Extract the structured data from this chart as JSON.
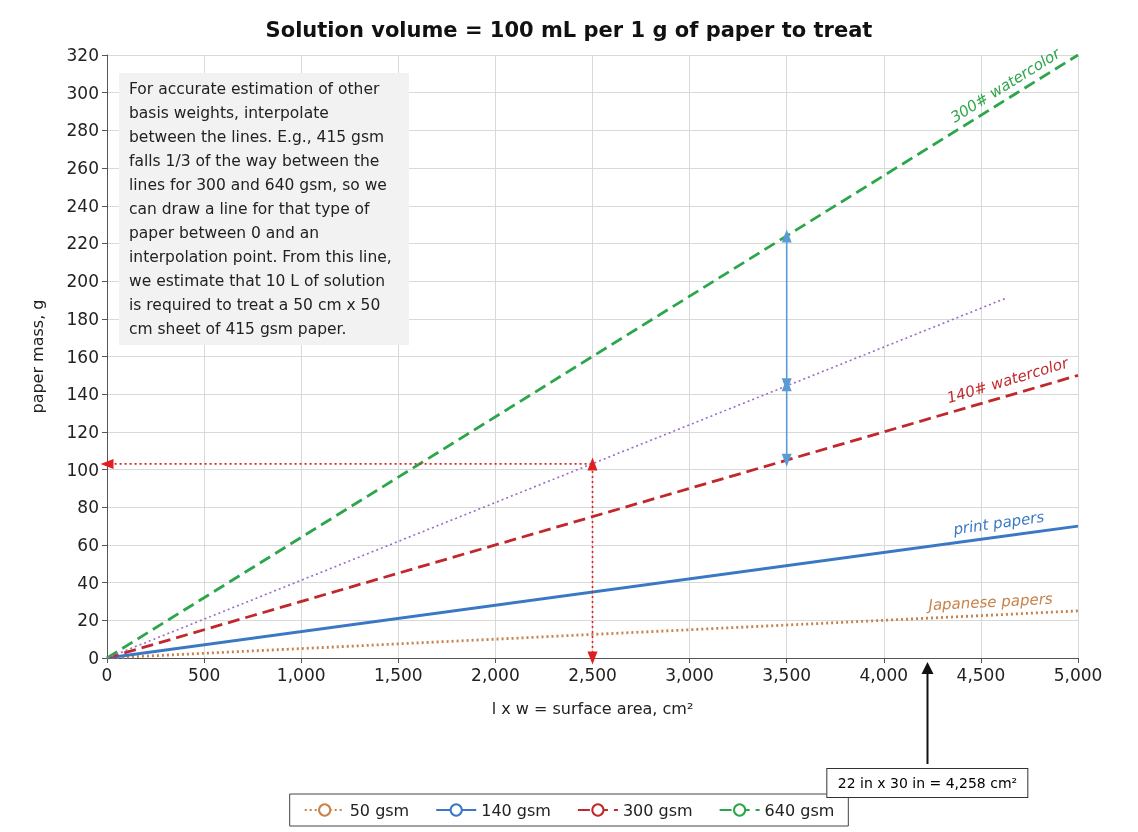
{
  "chart_data": {
    "type": "line",
    "title": "Solution volume = 100 mL per 1 g of paper to treat",
    "xlabel": "l x w = surface area, cm²",
    "ylabel": "paper mass, g",
    "xlim": [
      0,
      5000
    ],
    "xticks": [
      0,
      500,
      {
        "value": 1000,
        "label": "1,000"
      },
      {
        "value": 1500,
        "label": "1,500"
      },
      {
        "value": 2000,
        "label": "2,000"
      },
      {
        "value": 2500,
        "label": "2,500"
      },
      {
        "value": 3000,
        "label": "3,000"
      },
      {
        "value": 3500,
        "label": "3,500"
      },
      {
        "value": 4000,
        "label": "4,000"
      },
      {
        "value": 4500,
        "label": "4,500"
      },
      {
        "value": 5000,
        "label": "5,000"
      }
    ],
    "ylim": [
      0,
      320
    ],
    "yticks": [
      0,
      20,
      40,
      60,
      80,
      100,
      120,
      140,
      160,
      180,
      200,
      220,
      240,
      260,
      280,
      300,
      320
    ],
    "grid": true,
    "legend": "bottom",
    "marker": "none",
    "series": [
      {
        "name": "50 gsm",
        "color": "#c8824a",
        "line_style": "dotted",
        "x": [
          0,
          5000
        ],
        "values": [
          0,
          25
        ]
      },
      {
        "name": "140 gsm",
        "color": "#3a78c3",
        "line_style": "solid",
        "x": [
          0,
          5000
        ],
        "values": [
          0,
          70
        ]
      },
      {
        "name": "300 gsm",
        "color": "#c0282d",
        "line_style": "dashed",
        "x": [
          0,
          5000
        ],
        "values": [
          0,
          150
        ]
      },
      {
        "name": "640 gsm",
        "color": "#2ca64a",
        "line_style": "dashed",
        "x": [
          0,
          5000
        ],
        "values": [
          0,
          320
        ]
      },
      {
        "color": "#9b6bc2",
        "line_style": "dotted",
        "x": [
          0,
          4630
        ],
        "values": [
          0,
          191
        ]
      },
      {
        "color": "#e02020",
        "line_style": "dotted",
        "marker": "triangle",
        "x": [
          2500,
          2500,
          0
        ],
        "values": [
          0,
          103,
          103
        ]
      },
      {
        "color": "#5b9bd5",
        "line_style": "solid",
        "marker": "triangle",
        "x": [
          3500,
          3500
        ],
        "values": [
          224,
          145
        ]
      },
      {
        "color": "#5b9bd5",
        "line_style": "solid",
        "marker": "triangle",
        "x": [
          3500,
          3500
        ],
        "values": [
          145,
          105
        ]
      }
    ],
    "annotations": [
      "For accurate estimation of other basis weights, interpolate between the lines. E.g., 415 gsm falls 1/3 of the way between the lines for 300 and 640 gsm, so we can draw a line for that type of paper between 0 and an interpolation point.  From this line, we estimate that 10 L of solution is required to treat a 50 cm x 50 cm sheet of 415 gsm paper.",
      {
        "text": "300# watercolor",
        "x": 4650,
        "y": 300
      },
      {
        "text": "140# watercolor",
        "x": 4650,
        "y": 143
      },
      {
        "text": "print papers",
        "x": 4600,
        "y": 67
      },
      {
        "text": "Japanese papers",
        "x": 4550,
        "y": 25
      },
      "22 in x 30 in = 4,258 cm²"
    ]
  }
}
